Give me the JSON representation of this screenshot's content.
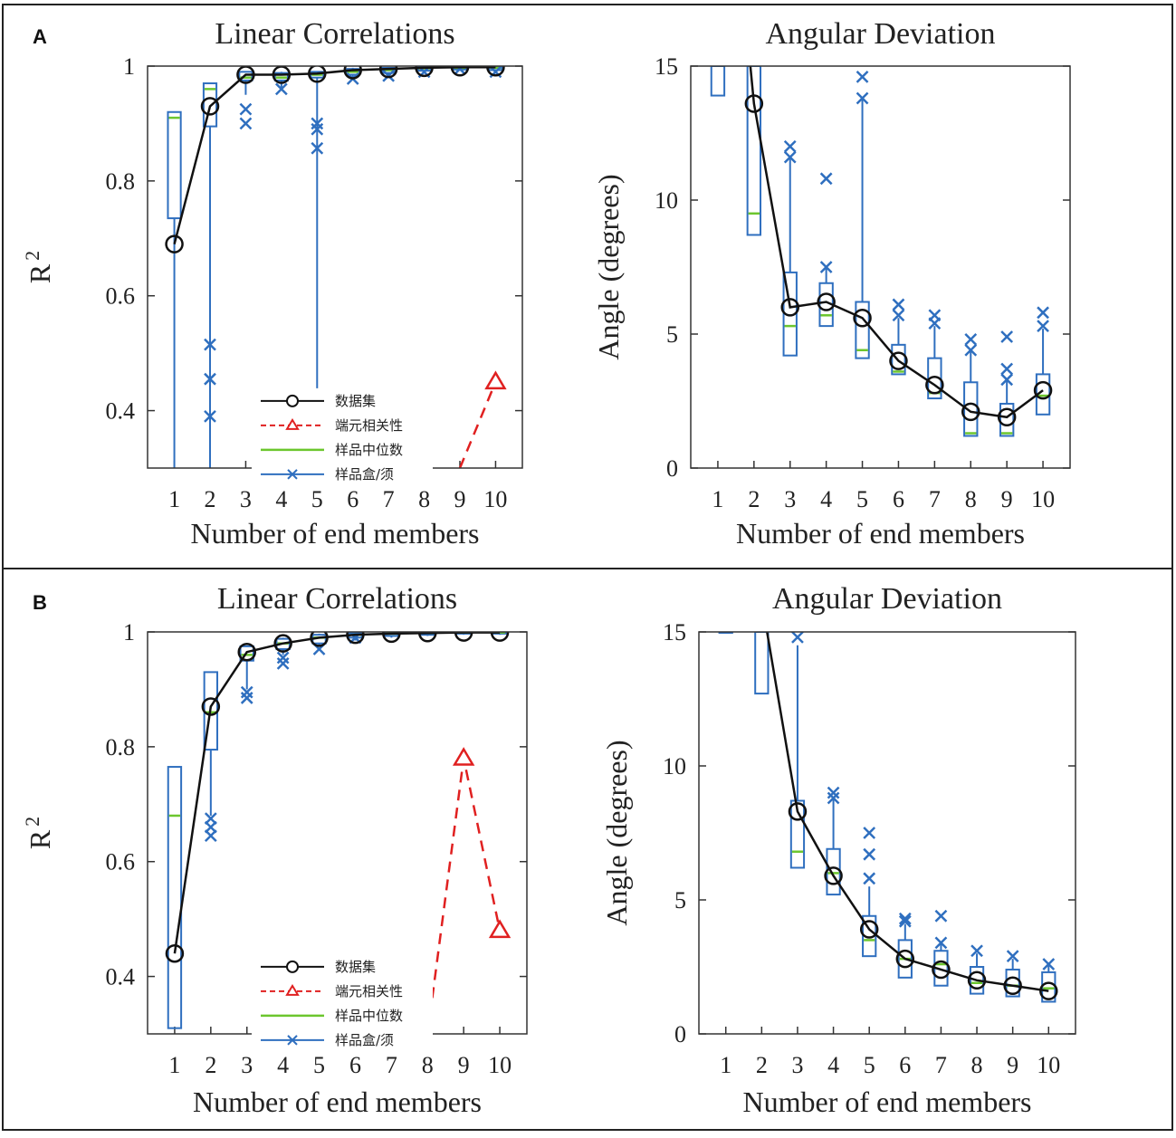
{
  "panels": [
    {
      "letter": "A",
      "charts": [
        {
          "type": "box",
          "title": "Linear Correlations",
          "xlabel": "Number of end members",
          "ylabel_base": "R",
          "ylabel_sup": "2",
          "ylim": [
            0.3,
            1.0
          ],
          "yticks": [
            0.4,
            0.6,
            0.8,
            1
          ],
          "ytick_labels": [
            "0.4",
            "0.6",
            "0.8",
            "1"
          ],
          "categories": [
            "1",
            "2",
            "3",
            "4",
            "5",
            "6",
            "7",
            "8",
            "9",
            "10"
          ],
          "dataset": [
            0.69,
            0.93,
            0.985,
            0.985,
            0.987,
            0.993,
            0.995,
            0.997,
            0.998,
            0.998
          ],
          "endmember_correlation": [
            null,
            null,
            null,
            null,
            null,
            null,
            null,
            null,
            0.3,
            0.45
          ],
          "medians": [
            0.91,
            0.96,
            0.98,
            0.98,
            0.985,
            0.99,
            0.993,
            0.996,
            0.997,
            0.997
          ],
          "boxes": [
            {
              "q1": 0.735,
              "q3": 0.92,
              "wlo": 0.3,
              "whi": 0.92
            },
            {
              "q1": 0.895,
              "q3": 0.97,
              "wlo": 0.3,
              "whi": 0.97
            },
            {
              "q1": 0.975,
              "q3": 0.99,
              "wlo": 0.95,
              "whi": 0.99
            },
            {
              "q1": 0.975,
              "q3": 0.988,
              "wlo": 0.96,
              "whi": 0.99
            },
            {
              "q1": 0.98,
              "q3": 0.99,
              "wlo": 0.3,
              "whi": 0.99
            },
            {
              "q1": 0.985,
              "q3": 0.995,
              "wlo": 0.98,
              "whi": 0.997
            },
            {
              "q1": 0.988,
              "q3": 0.997,
              "wlo": 0.982,
              "whi": 0.998
            },
            {
              "q1": 0.992,
              "q3": 0.998,
              "wlo": 0.99,
              "whi": 0.999
            },
            {
              "q1": 0.994,
              "q3": 0.999,
              "wlo": 0.992,
              "whi": 0.999
            },
            {
              "q1": 0.993,
              "q3": 0.999,
              "wlo": 0.99,
              "whi": 0.999
            }
          ],
          "outliers": [
            [],
            [
              0.515,
              0.455,
              0.39
            ],
            [
              0.925,
              0.9
            ],
            [
              0.96
            ],
            [
              0.9,
              0.89,
              0.857
            ],
            [
              0.978
            ],
            [
              0.983
            ],
            [
              0.99
            ],
            [
              0.995
            ],
            [
              0.99
            ]
          ],
          "legend": {
            "position": "lower-middle",
            "entries": [
              "数据集",
              "端元相关性",
              "样品中位数",
              "样品盒/须"
            ]
          }
        },
        {
          "type": "box",
          "title": "Angular Deviation",
          "xlabel": "Number of end members",
          "ylabel": "Angle (degrees)",
          "ylim": [
            0,
            15
          ],
          "yticks": [
            0,
            5,
            10,
            15
          ],
          "ytick_labels": [
            "0",
            "5",
            "10",
            "15"
          ],
          "categories": [
            "1",
            "2",
            "3",
            "4",
            "5",
            "6",
            "7",
            "8",
            "9",
            "10"
          ],
          "dataset": [
            null,
            13.6,
            6.0,
            6.2,
            5.6,
            4.0,
            3.1,
            2.1,
            1.9,
            2.9
          ],
          "line_from_top": {
            "x": 1.9,
            "y": 15
          },
          "medians": [
            null,
            9.5,
            5.3,
            5.7,
            4.4,
            3.6,
            2.8,
            1.3,
            1.3,
            2.7
          ],
          "boxes": [
            {
              "q1": 13.9,
              "q3": 15,
              "wlo": 13.9,
              "whi": 15
            },
            {
              "q1": 8.7,
              "q3": 15,
              "wlo": 8.7,
              "whi": 15
            },
            {
              "q1": 4.2,
              "q3": 7.3,
              "wlo": 4.2,
              "whi": 11.6
            },
            {
              "q1": 5.3,
              "q3": 6.9,
              "wlo": 5.3,
              "whi": 7.5
            },
            {
              "q1": 4.1,
              "q3": 6.2,
              "wlo": 4.1,
              "whi": 13.8
            },
            {
              "q1": 3.5,
              "q3": 4.6,
              "wlo": 3.5,
              "whi": 5.6
            },
            {
              "q1": 2.6,
              "q3": 4.1,
              "wlo": 2.6,
              "whi": 5.3
            },
            {
              "q1": 1.2,
              "q3": 3.2,
              "wlo": 1.2,
              "whi": 4.4
            },
            {
              "q1": 1.2,
              "q3": 2.4,
              "wlo": 1.2,
              "whi": 3.3
            },
            {
              "q1": 2.0,
              "q3": 3.5,
              "wlo": 2.0,
              "whi": 5.2
            }
          ],
          "outliers": [
            [],
            [],
            [
              12.0,
              11.6
            ],
            [
              10.8,
              7.5
            ],
            [
              14.6,
              13.8
            ],
            [
              6.1,
              5.7
            ],
            [
              5.7,
              5.4
            ],
            [
              4.8,
              4.4
            ],
            [
              4.9,
              3.7,
              3.3
            ],
            [
              5.8,
              5.3
            ]
          ]
        }
      ]
    },
    {
      "letter": "B",
      "charts": [
        {
          "type": "box",
          "title": "Linear Correlations",
          "xlabel": "Number of end members",
          "ylabel_base": "R",
          "ylabel_sup": "2",
          "ylim": [
            0.3,
            1.0
          ],
          "yticks": [
            0.4,
            0.6,
            0.8,
            1
          ],
          "ytick_labels": [
            "0.4",
            "0.6",
            "0.8",
            "1"
          ],
          "categories": [
            "1",
            "2",
            "3",
            "4",
            "5",
            "6",
            "7",
            "8",
            "9",
            "10"
          ],
          "dataset": [
            0.44,
            0.87,
            0.965,
            0.98,
            0.99,
            0.995,
            0.997,
            0.998,
            0.999,
            0.999
          ],
          "endmember_correlation": [
            null,
            null,
            null,
            null,
            null,
            null,
            null,
            0.3,
            0.78,
            0.48
          ],
          "medians": [
            0.68,
            0.86,
            0.96,
            0.98,
            0.99,
            0.995,
            0.997,
            0.998,
            0.999,
            0.999
          ],
          "boxes": [
            {
              "q1": 0.31,
              "q3": 0.765,
              "wlo": 0.31,
              "whi": 0.765
            },
            {
              "q1": 0.795,
              "q3": 0.93,
              "wlo": 0.68,
              "whi": 0.93
            },
            {
              "q1": 0.95,
              "q3": 0.975,
              "wlo": 0.9,
              "whi": 0.975
            },
            {
              "q1": 0.97,
              "q3": 0.988,
              "wlo": 0.96,
              "whi": 0.99
            },
            {
              "q1": 0.98,
              "q3": 0.995,
              "wlo": 0.975,
              "whi": 0.997
            },
            {
              "q1": 0.99,
              "q3": 0.998,
              "wlo": 0.985,
              "whi": 0.999
            },
            {
              "q1": 0.993,
              "q3": 0.999,
              "wlo": 0.99,
              "whi": 0.999
            },
            {
              "q1": 0.995,
              "q3": 0.999,
              "wlo": 0.993,
              "whi": 0.999
            },
            {
              "q1": 0.997,
              "q3": 0.999,
              "wlo": 0.995,
              "whi": 0.999
            },
            {
              "q1": 0.997,
              "q3": 0.999,
              "wlo": 0.995,
              "whi": 0.999
            }
          ],
          "outliers": [
            [],
            [
              0.675,
              0.66,
              0.645
            ],
            [
              0.895,
              0.885
            ],
            [
              0.955,
              0.945
            ],
            [
              0.97
            ],
            [
              0.99
            ],
            [],
            [],
            [],
            []
          ],
          "legend": {
            "position": "lower-middle",
            "entries": [
              "数据集",
              "端元相关性",
              "样品中位数",
              "样品盒/须"
            ]
          }
        },
        {
          "type": "box",
          "title": "Angular Deviation",
          "xlabel": "Number of end members",
          "ylabel": "Angle (degrees)",
          "ylim": [
            0,
            15
          ],
          "yticks": [
            0,
            5,
            10,
            15
          ],
          "ytick_labels": [
            "0",
            "5",
            "10",
            "15"
          ],
          "categories": [
            "1",
            "2",
            "3",
            "4",
            "5",
            "6",
            "7",
            "8",
            "9",
            "10"
          ],
          "dataset": [
            null,
            null,
            8.3,
            5.9,
            3.9,
            2.8,
            2.4,
            2.0,
            1.8,
            1.6
          ],
          "line_from_top": {
            "x": 2.15,
            "y": 15
          },
          "medians": [
            null,
            null,
            6.8,
            6.0,
            3.5,
            2.8,
            2.6,
            1.9,
            1.8,
            1.7
          ],
          "boxes": [
            {
              "q1": 15,
              "q3": 15,
              "wlo": 15,
              "whi": 15
            },
            {
              "q1": 12.7,
              "q3": 15,
              "wlo": 12.7,
              "whi": 15
            },
            {
              "q1": 6.2,
              "q3": 8.7,
              "wlo": 6.2,
              "whi": 14.5
            },
            {
              "q1": 5.2,
              "q3": 6.9,
              "wlo": 5.2,
              "whi": 8.8
            },
            {
              "q1": 2.9,
              "q3": 4.4,
              "wlo": 2.9,
              "whi": 5.5
            },
            {
              "q1": 2.1,
              "q3": 3.5,
              "wlo": 2.1,
              "whi": 4.1
            },
            {
              "q1": 1.8,
              "q3": 3.1,
              "wlo": 1.8,
              "whi": 3.4
            },
            {
              "q1": 1.5,
              "q3": 2.5,
              "wlo": 1.5,
              "whi": 3.0
            },
            {
              "q1": 1.4,
              "q3": 2.4,
              "wlo": 1.4,
              "whi": 2.8
            },
            {
              "q1": 1.2,
              "q3": 2.3,
              "wlo": 1.2,
              "whi": 2.6
            }
          ],
          "outliers": [
            [],
            [],
            [
              14.8
            ],
            [
              9.0,
              8.8
            ],
            [
              7.5,
              6.7,
              5.8
            ],
            [
              4.3,
              4.2
            ],
            [
              4.4,
              3.4
            ],
            [
              3.1
            ],
            [
              2.9
            ],
            [
              2.6
            ]
          ]
        }
      ]
    }
  ],
  "colors": {
    "dataset": "#111111",
    "endmember": "#e02020",
    "median": "#6cc62e",
    "box": "#2f6fbf",
    "outlier": "#2f6fbf"
  }
}
